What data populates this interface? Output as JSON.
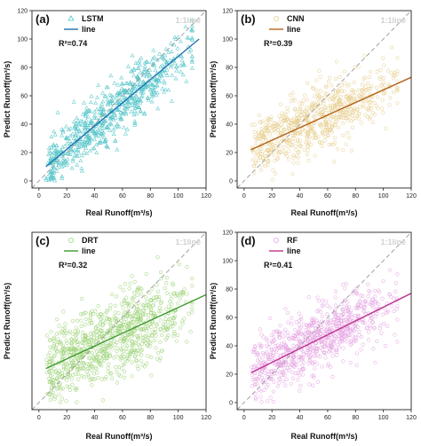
{
  "chart_data": [
    {
      "panel": "(a)",
      "model": "LSTM",
      "type": "scatter",
      "color": "#4fc3c7",
      "line_color": "#1f6fb0",
      "marker": "triangle",
      "r2": "R²=0.74",
      "line_label": "line",
      "ref_label": "1:1line",
      "xlabel": "Real Runoff(m³/s)",
      "ylabel": "Predict Runoff(m³/s)",
      "xlim": [
        -5,
        120
      ],
      "ylim": [
        -5,
        120
      ],
      "xticks": [
        "0",
        "20",
        "40",
        "60",
        "80",
        "100",
        "120"
      ],
      "yticks": [
        "0",
        "20",
        "40",
        "60",
        "80",
        "100",
        "120"
      ],
      "fit": {
        "x": [
          5,
          115
        ],
        "y": [
          10,
          100
        ]
      },
      "cloud": {
        "slope": 0.82,
        "intercept": 6,
        "spread": 10,
        "xmin": 5,
        "xmax": 110,
        "n": 700,
        "seed": 11
      },
      "show_yticks": true
    },
    {
      "panel": "(b)",
      "model": "CNN",
      "type": "scatter",
      "color": "#e6cf8f",
      "line_color": "#b5651d",
      "marker": "circle",
      "r2": "R²=0.39",
      "line_label": "line",
      "ref_label": "1:1line",
      "xlabel": "Real Runoff(m³/s)",
      "ylabel": "Predict Runoff(m³/s)",
      "xlim": [
        -5,
        120
      ],
      "ylim": [
        -5,
        120
      ],
      "xticks": [
        "0",
        "20",
        "40",
        "60",
        "80",
        "100",
        "120"
      ],
      "yticks": [
        "0",
        "20",
        "40",
        "60",
        "80",
        "100",
        "120"
      ],
      "fit": {
        "x": [
          5,
          120
        ],
        "y": [
          22,
          73
        ]
      },
      "cloud": {
        "slope": 0.44,
        "intercept": 20,
        "spread": 11,
        "xmin": 5,
        "xmax": 110,
        "n": 700,
        "seed": 23
      },
      "show_yticks": true
    },
    {
      "panel": "(c)",
      "model": "DRT",
      "type": "scatter",
      "color": "#9fd47a",
      "line_color": "#3c9a2e",
      "marker": "circle",
      "r2": "R²=0.32",
      "line_label": "line",
      "ref_label": "1:1line",
      "xlabel": "Real Runoff(m³/s)",
      "ylabel": "Predict Runoff(m³/s)",
      "xlim": [
        -5,
        120
      ],
      "ylim": [
        -5,
        120
      ],
      "xticks": [
        "0",
        "20",
        "40",
        "60",
        "80",
        "100",
        "120"
      ],
      "yticks": [],
      "fit": {
        "x": [
          5,
          120
        ],
        "y": [
          24,
          76
        ]
      },
      "cloud": {
        "slope": 0.45,
        "intercept": 22,
        "spread": 14,
        "xmin": 5,
        "xmax": 110,
        "n": 900,
        "seed": 37
      },
      "show_yticks": false
    },
    {
      "panel": "(d)",
      "model": "RF",
      "type": "scatter",
      "color": "#e5a6e3",
      "line_color": "#c0308f",
      "marker": "circle",
      "r2": "R²=0.41",
      "line_label": "line",
      "ref_label": "1:1line",
      "xlabel": "Real Runoff(m³/s)",
      "ylabel": "Predict Runoff(m³/s)",
      "xlim": [
        -5,
        120
      ],
      "ylim": [
        -5,
        120
      ],
      "xticks": [
        "0",
        "20",
        "40",
        "60",
        "80",
        "100",
        "120"
      ],
      "yticks": [
        "0",
        "20",
        "40",
        "60",
        "80",
        "100",
        "120"
      ],
      "fit": {
        "x": [
          5,
          120
        ],
        "y": [
          21,
          77
        ]
      },
      "cloud": {
        "slope": 0.48,
        "intercept": 19,
        "spread": 12,
        "xmin": 5,
        "xmax": 110,
        "n": 800,
        "seed": 53
      },
      "show_yticks": true
    }
  ]
}
